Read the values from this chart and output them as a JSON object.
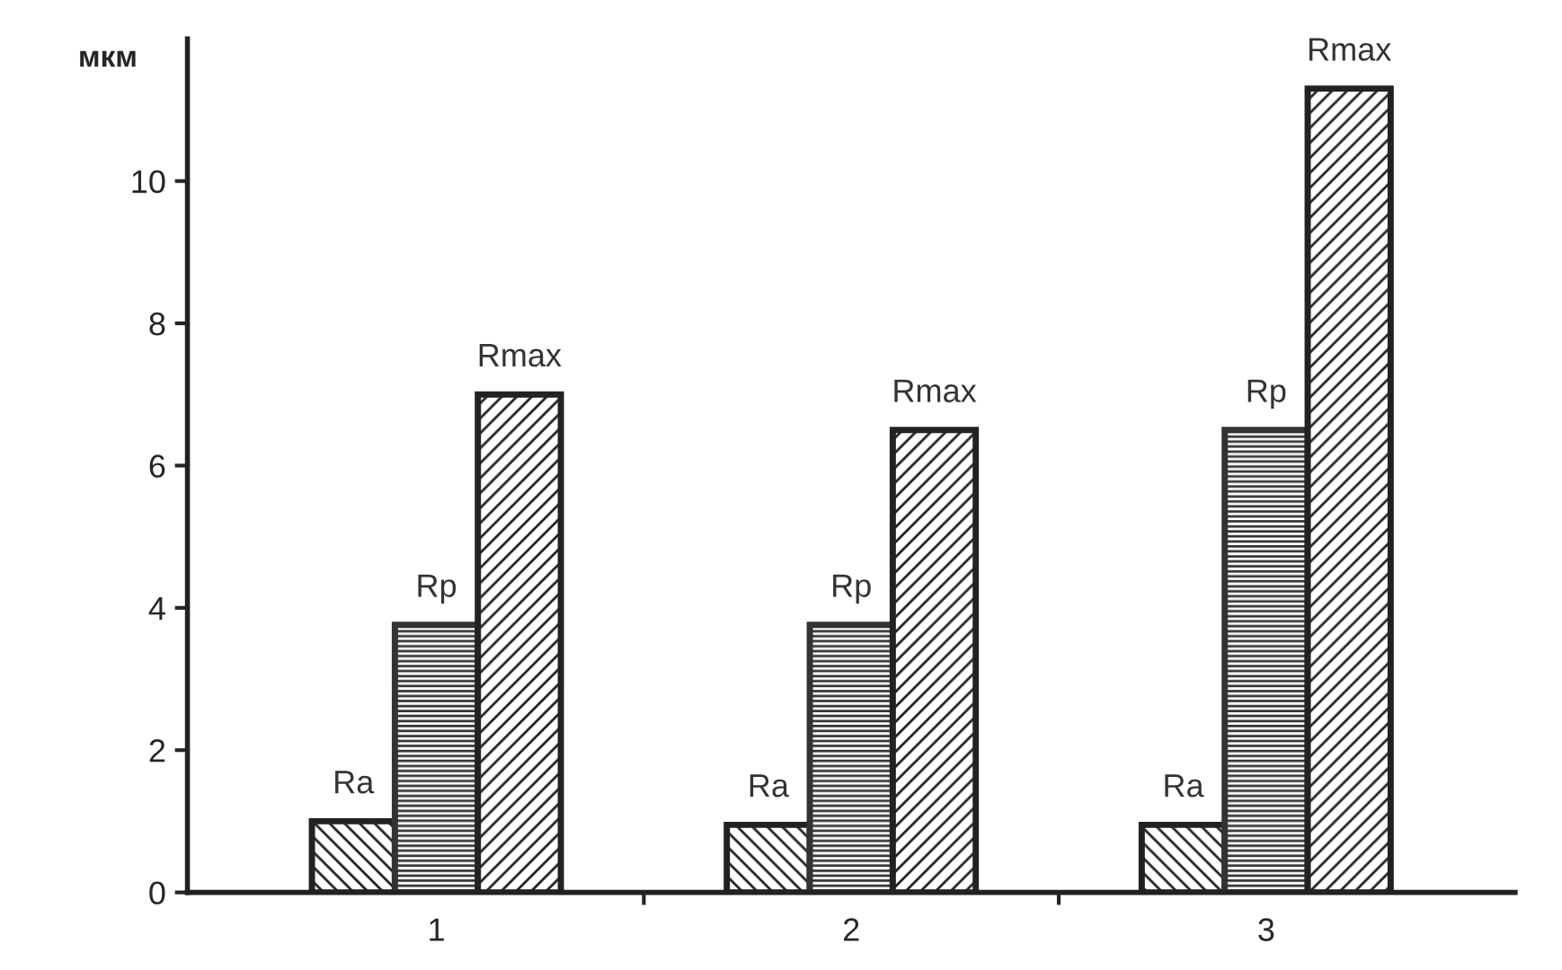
{
  "chart_data": {
    "type": "bar",
    "ylabel": "мкм",
    "categories": [
      "1",
      "2",
      "3"
    ],
    "series": [
      {
        "name": "Ra",
        "color": "#222222",
        "values": [
          1.0,
          0.95,
          0.95
        ]
      },
      {
        "name": "Rp",
        "color": "#333333",
        "values": [
          3.76,
          3.76,
          6.5
        ]
      },
      {
        "name": "Rmax",
        "color": "#222222",
        "values": [
          7.0,
          6.5,
          11.3
        ]
      }
    ],
    "ylim": [
      0,
      12
    ],
    "yticks": [
      0,
      2,
      4,
      6,
      8,
      10
    ],
    "grid": false,
    "legend": false
  }
}
